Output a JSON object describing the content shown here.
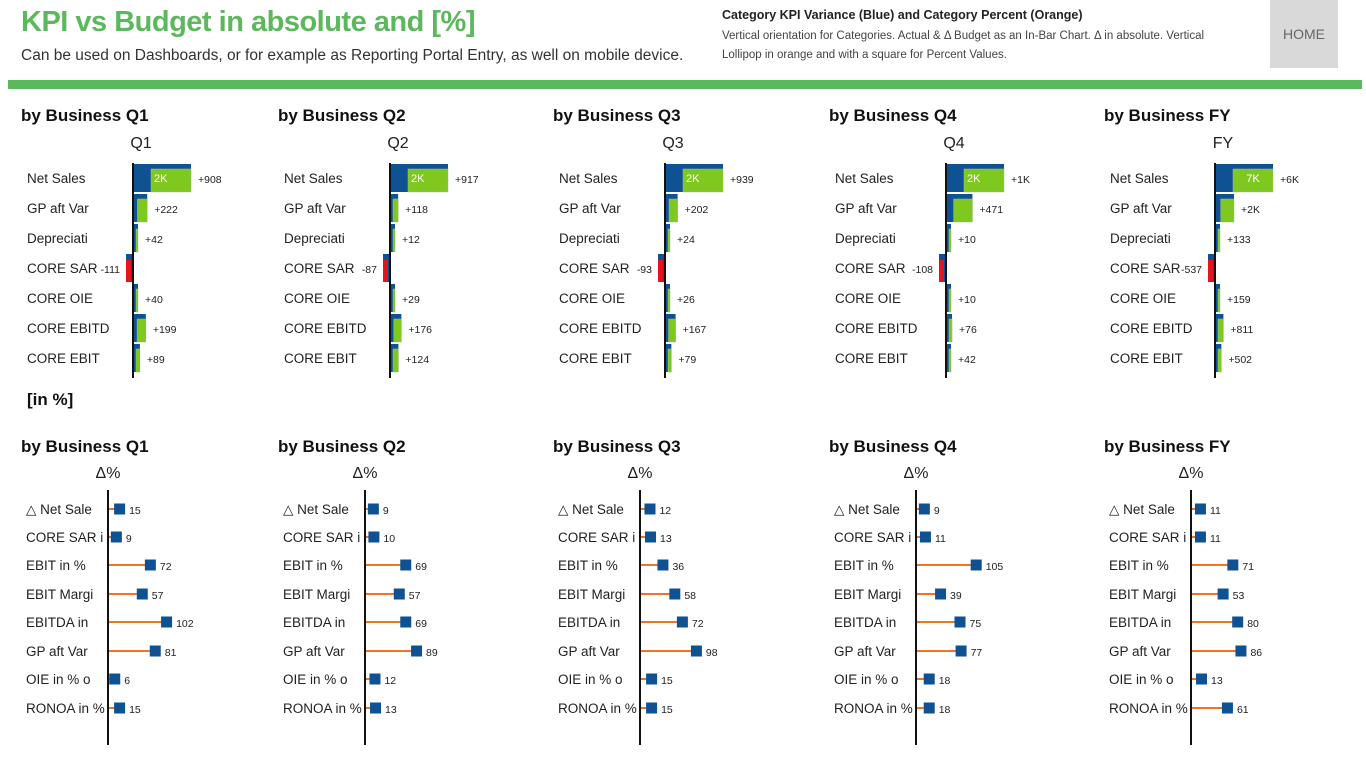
{
  "header": {
    "title": "KPI vs Budget in absolute and [%]",
    "subtitle": "Can be used on Dashboards, or for example as Reporting Portal Entry, as well on mobile device.",
    "description_title": "Category KPI Variance (Blue) and Category Percent (Orange)",
    "description_body": "Vertical orientation for Categories. Actual & Δ Budget as an In-Bar Chart. Δ in absolute. Vertical Lollipop in orange and with a square for Percent Values.",
    "home_label": "HOME"
  },
  "colors": {
    "brand_green": "#5cb85c",
    "actual_blue": "#0f5294",
    "delta_green": "#7ec820",
    "negative_red": "#e3141b",
    "lollipop_orange": "#ee7623",
    "square_blue": "#0f5294"
  },
  "percent_section_label": "[in %]",
  "chart_data": [
    {
      "type": "bar",
      "group": "absolute",
      "title": "by Business Q1",
      "axis_label": "Q1",
      "categories": [
        "Net Sales",
        "GP aft Var",
        "Depreciati",
        "CORE SAR",
        "CORE OIE",
        "CORE EBITD",
        "CORE EBIT"
      ],
      "delta_values": [
        908,
        222,
        42,
        -111,
        40,
        199,
        89
      ],
      "delta_labels": [
        "+908",
        "+222",
        "+42",
        "-111",
        "+40",
        "+199",
        "+89"
      ],
      "in_bar_labels": [
        "2K",
        "",
        "",
        "",
        "",
        "",
        ""
      ]
    },
    {
      "type": "bar",
      "group": "absolute",
      "title": "by Business Q2",
      "axis_label": "Q2",
      "categories": [
        "Net Sales",
        "GP aft Var",
        "Depreciati",
        "CORE SAR",
        "CORE OIE",
        "CORE EBITD",
        "CORE EBIT"
      ],
      "delta_values": [
        917,
        118,
        12,
        -87,
        29,
        176,
        124
      ],
      "delta_labels": [
        "+917",
        "+118",
        "+12",
        "-87",
        "+29",
        "+176",
        "+124"
      ],
      "in_bar_labels": [
        "2K",
        "",
        "",
        "",
        "",
        "",
        ""
      ]
    },
    {
      "type": "bar",
      "group": "absolute",
      "title": "by Business Q3",
      "axis_label": "Q3",
      "categories": [
        "Net Sales",
        "GP aft Var",
        "Depreciati",
        "CORE SAR",
        "CORE OIE",
        "CORE EBITD",
        "CORE EBIT"
      ],
      "delta_values": [
        939,
        202,
        24,
        -93,
        26,
        167,
        79
      ],
      "delta_labels": [
        "+939",
        "+202",
        "+24",
        "-93",
        "+26",
        "+167",
        "+79"
      ],
      "in_bar_labels": [
        "2K",
        "",
        "",
        "",
        "",
        "",
        ""
      ]
    },
    {
      "type": "bar",
      "group": "absolute",
      "title": "by Business Q4",
      "axis_label": "Q4",
      "categories": [
        "Net Sales",
        "GP aft Var",
        "Depreciati",
        "CORE SAR",
        "CORE OIE",
        "CORE EBITD",
        "CORE EBIT"
      ],
      "delta_values": [
        1000,
        471,
        10,
        -108,
        10,
        76,
        42
      ],
      "delta_labels": [
        "+1K",
        "+471",
        "+10",
        "-108",
        "+10",
        "+76",
        "+42"
      ],
      "in_bar_labels": [
        "2K",
        "",
        "",
        "",
        "",
        "",
        ""
      ]
    },
    {
      "type": "bar",
      "group": "absolute",
      "title": "by Business FY",
      "axis_label": "FY",
      "categories": [
        "Net Sales",
        "GP aft Var",
        "Depreciati",
        "CORE SAR",
        "CORE OIE",
        "CORE EBITD",
        "CORE EBIT"
      ],
      "delta_values": [
        6000,
        2000,
        133,
        -537,
        159,
        811,
        502
      ],
      "delta_labels": [
        "+6K",
        "+2K",
        "+133",
        "-537",
        "+159",
        "+811",
        "+502"
      ],
      "in_bar_labels": [
        "7K",
        "",
        "",
        "",
        "",
        "",
        ""
      ]
    },
    {
      "type": "lollipop",
      "group": "percent",
      "title": "by Business Q1",
      "axis_label": "Δ%",
      "categories": [
        "△ Net Sale",
        "CORE SAR i",
        "EBIT in %",
        "EBIT Margi",
        "EBITDA in",
        "GP aft Var",
        "OIE in % o",
        "RONOA in %"
      ],
      "values": [
        15,
        9,
        72,
        57,
        102,
        81,
        6,
        15
      ]
    },
    {
      "type": "lollipop",
      "group": "percent",
      "title": "by Business Q2",
      "axis_label": "Δ%",
      "categories": [
        "△ Net Sale",
        "CORE SAR i",
        "EBIT in %",
        "EBIT Margi",
        "EBITDA in",
        "GP aft Var",
        "OIE in % o",
        "RONOA in %"
      ],
      "values": [
        9,
        10,
        69,
        57,
        69,
        89,
        12,
        13
      ]
    },
    {
      "type": "lollipop",
      "group": "percent",
      "title": "by Business Q3",
      "axis_label": "Δ%",
      "categories": [
        "△ Net Sale",
        "CORE SAR i",
        "EBIT in %",
        "EBIT Margi",
        "EBITDA in",
        "GP aft Var",
        "OIE in % o",
        "RONOA in %"
      ],
      "values": [
        12,
        13,
        36,
        58,
        72,
        98,
        15,
        15
      ]
    },
    {
      "type": "lollipop",
      "group": "percent",
      "title": "by Business Q4",
      "axis_label": "Δ%",
      "categories": [
        "△ Net Sale",
        "CORE SAR i",
        "EBIT in %",
        "EBIT Margi",
        "EBITDA in",
        "GP aft Var",
        "OIE in % o",
        "RONOA in %"
      ],
      "values": [
        9,
        11,
        105,
        39,
        75,
        77,
        18,
        18
      ]
    },
    {
      "type": "lollipop",
      "group": "percent",
      "title": "by Business FY",
      "axis_label": "Δ%",
      "categories": [
        "△ Net Sale",
        "CORE SAR i",
        "EBIT in %",
        "EBIT Margi",
        "EBITDA in",
        "GP aft Var",
        "OIE in % o",
        "RONOA in %"
      ],
      "values": [
        11,
        11,
        71,
        53,
        80,
        86,
        13,
        61
      ]
    }
  ]
}
